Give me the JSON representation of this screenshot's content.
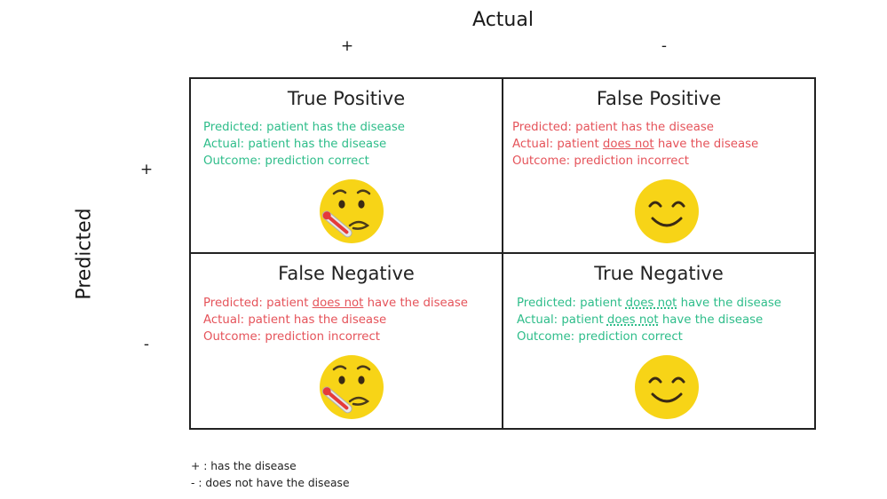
{
  "axes": {
    "actual_label": "Actual",
    "predicted_label": "Predicted",
    "col_positive": "+",
    "col_negative": "-",
    "row_positive": "+",
    "row_negative": "-"
  },
  "cells": {
    "tp": {
      "title": "True Positive",
      "line1": "Predicted: patient has the disease",
      "line2": "Actual: patient has the disease",
      "line3": "Outcome: prediction correct",
      "color": "#2ebd8a",
      "icon": "sick-face-thermometer-icon"
    },
    "fp": {
      "title": "False Positive",
      "line1": "Predicted: patient has the disease",
      "line2_a": "Actual: patient ",
      "line2_b": "does not",
      "line2_c": " have the disease",
      "line3": "Outcome: prediction incorrect",
      "color": "#e5535a",
      "icon": "smiling-face-icon"
    },
    "fn": {
      "title": "False Negative",
      "line1_a": "Predicted: patient ",
      "line1_b": "does not",
      "line1_c": " have the disease",
      "line2": "Actual: patient has the disease",
      "line3": "Outcome: prediction incorrect",
      "color": "#e5535a",
      "icon": "sick-face-thermometer-icon"
    },
    "tn": {
      "title": "True Negative",
      "line1_a": "Predicted: patient ",
      "line1_b": "does not",
      "line1_c": " have the disease",
      "line2_a": "Actual: patient ",
      "line2_b": "does not",
      "line2_c": " have the disease",
      "line3": "Outcome: prediction correct",
      "color": "#2ebd8a",
      "icon": "smiling-face-icon"
    }
  },
  "legend": {
    "plus": "+ : has the disease",
    "minus": "- : does not have the disease"
  },
  "colors": {
    "correct": "#2ebd8a",
    "incorrect": "#e5535a",
    "emoji_yellow": "#f7d417"
  }
}
